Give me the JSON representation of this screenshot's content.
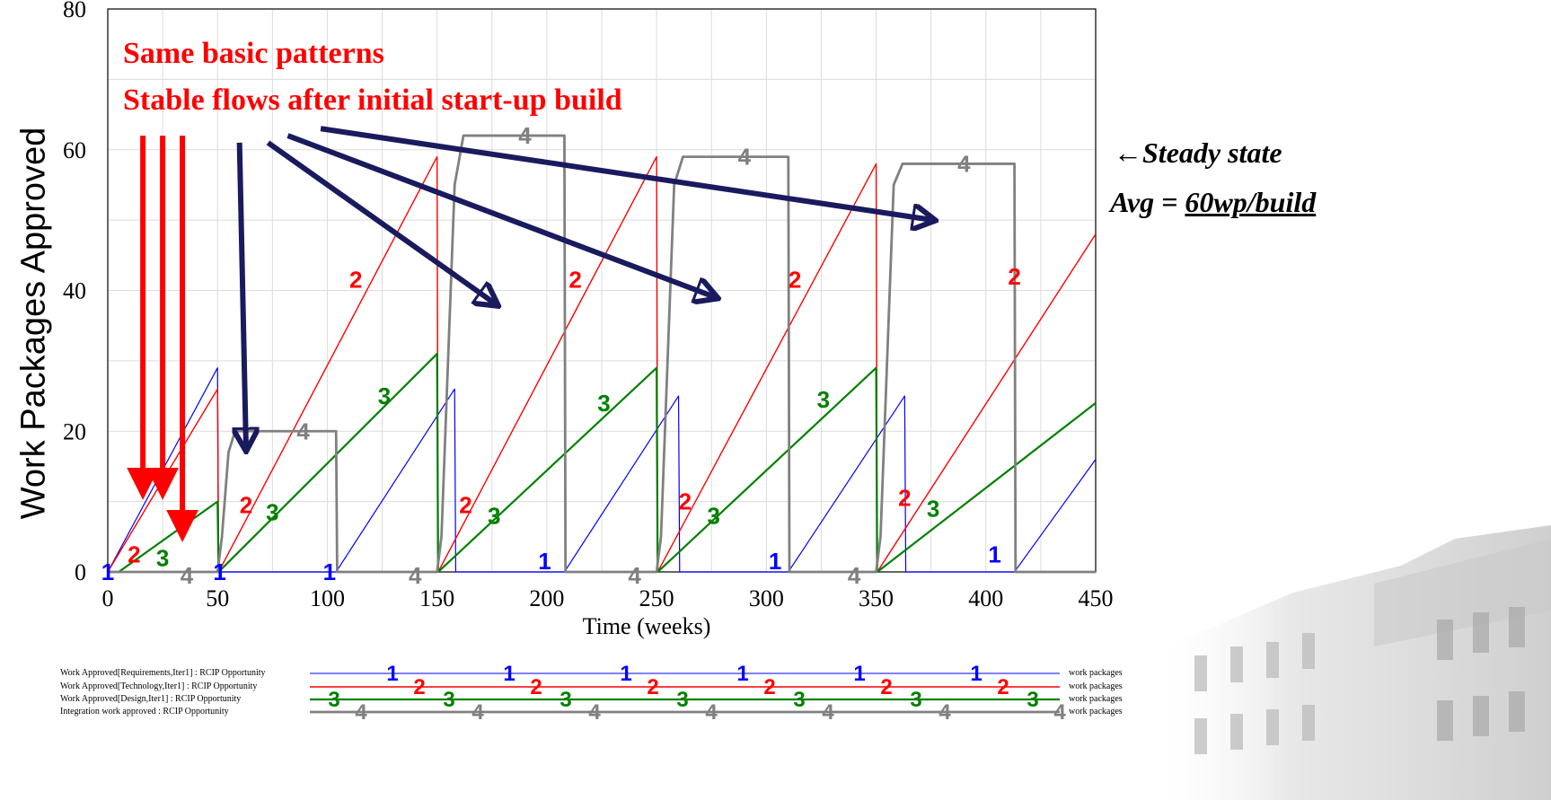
{
  "chart_data": {
    "type": "line",
    "xlabel": "Time (weeks)",
    "ylabel": "Work Packages Approved",
    "xlim": [
      0,
      450
    ],
    "ylim": [
      0,
      80
    ],
    "xticks": [
      0,
      50,
      100,
      150,
      200,
      250,
      300,
      350,
      400,
      450
    ],
    "yticks": [
      0,
      20,
      40,
      60,
      80
    ],
    "grid": true,
    "series": [
      {
        "marker": "1",
        "color": "#0000ff",
        "x": [
          0,
          50,
          50.5,
          104,
          158,
          158.5,
          208,
          260,
          260.5,
          310,
          363,
          363.5,
          413,
          450
        ],
        "y": [
          0,
          29,
          0,
          0,
          26,
          0,
          0,
          25,
          0,
          0,
          25,
          0,
          0,
          16
        ]
      },
      {
        "marker": "2",
        "color": "#ff0000",
        "x": [
          0,
          50,
          50.5,
          150,
          150.5,
          250,
          250.5,
          350,
          350.5,
          450
        ],
        "y": [
          0,
          26,
          0,
          59,
          0,
          59,
          0,
          58,
          0,
          48
        ]
      },
      {
        "marker": "3",
        "color": "#008000",
        "x": [
          0,
          5,
          50,
          50.5,
          150,
          150.5,
          250,
          250.5,
          350,
          350.5,
          450
        ],
        "y": [
          0,
          0,
          10,
          0,
          31,
          0,
          29,
          0,
          29,
          0,
          24
        ]
      },
      {
        "marker": "4",
        "color": "#808080",
        "x": [
          0,
          50,
          52,
          55,
          58,
          104,
          104.5,
          150,
          152,
          158,
          162,
          208,
          208.5,
          250,
          252,
          258,
          262,
          310,
          310.5,
          350,
          352,
          358,
          362,
          413,
          413.5,
          450
        ],
        "y": [
          0,
          0,
          5,
          17,
          20,
          20,
          0,
          0,
          5,
          55,
          62,
          62,
          0,
          0,
          5,
          55,
          59,
          59,
          0,
          0,
          5,
          55,
          58,
          58,
          0,
          0
        ]
      }
    ],
    "series_markers": {
      "s1": [
        [
          0,
          0
        ],
        [
          51,
          0
        ],
        [
          101,
          0
        ],
        [
          199,
          1.5
        ],
        [
          304,
          1.5
        ],
        [
          404,
          2.5
        ]
      ],
      "s2": [
        [
          12,
          2.5
        ],
        [
          63,
          9.5
        ],
        [
          113,
          41.5
        ],
        [
          163,
          9.5
        ],
        [
          213,
          41.5
        ],
        [
          263,
          10
        ],
        [
          313,
          41.5
        ],
        [
          363,
          10.5
        ],
        [
          413,
          42
        ]
      ],
      "s3": [
        [
          25,
          2
        ],
        [
          75,
          8.5
        ],
        [
          126,
          25
        ],
        [
          176,
          8
        ],
        [
          226,
          24
        ],
        [
          276,
          8
        ],
        [
          326,
          24.5
        ],
        [
          376,
          9
        ]
      ],
      "s4": [
        [
          36,
          -0.5
        ],
        [
          89,
          20
        ],
        [
          140,
          -0.5
        ],
        [
          190,
          62
        ],
        [
          240,
          -0.5
        ],
        [
          290,
          59
        ],
        [
          340,
          -0.5
        ],
        [
          390,
          58
        ]
      ]
    },
    "legend": [
      {
        "marker": "1",
        "label": "Work Approved[Requirements,Iter1] : RCIP Opportunity",
        "unit": "work packages",
        "color": "#0000ff"
      },
      {
        "marker": "2",
        "label": "Work Approved[Technology,Iter1] : RCIP Opportunity",
        "unit": "work packages",
        "color": "#ff0000"
      },
      {
        "marker": "3",
        "label": "Work Approved[Design,Iter1] : RCIP Opportunity",
        "unit": "work packages",
        "color": "#008000"
      },
      {
        "marker": "4",
        "label": "Integration work approved : RCIP Opportunity",
        "unit": "work packages",
        "color": "#808080"
      }
    ],
    "annotations": {
      "line1": "Same basic patterns",
      "line2": "Stable flows after initial start-up build",
      "steady_arrow": "←",
      "steady_label": "Steady state",
      "avg_prefix": "Avg = ",
      "avg_value": "60wp/build"
    },
    "red_arrows": [
      {
        "from": [
          16,
          62
        ],
        "to": [
          16,
          11
        ]
      },
      {
        "from": [
          25,
          62
        ],
        "to": [
          25,
          11
        ]
      },
      {
        "from": [
          34,
          62
        ],
        "to": [
          34,
          5
        ]
      }
    ],
    "navy_arrows": [
      {
        "from": [
          60,
          61
        ],
        "to": [
          63,
          17.5
        ]
      },
      {
        "from": [
          73,
          61
        ],
        "to": [
          177,
          38
        ]
      },
      {
        "from": [
          82,
          62
        ],
        "to": [
          277,
          39
        ]
      },
      {
        "from": [
          97,
          63
        ],
        "to": [
          376,
          50
        ]
      }
    ]
  }
}
